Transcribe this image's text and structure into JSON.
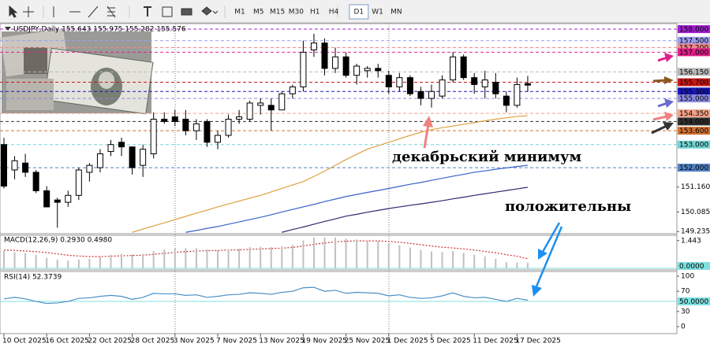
{
  "toolbar": {
    "timeframes": [
      "M1",
      "M5",
      "M15",
      "M30",
      "H1",
      "H4",
      "D1",
      "W1",
      "MN"
    ],
    "active": "D1"
  },
  "chart_data": [
    {
      "type": "candlestick",
      "title": "USDJPY,Daily 155.643 155.975 155.282 155.576",
      "categories": [
        "10 Oct 2025",
        null,
        null,
        null,
        "16 Oct 2025",
        null,
        null,
        null,
        "22 Oct 2025",
        null,
        null,
        null,
        "28 Oct 2025",
        null,
        null,
        null,
        "3 Nov 2025",
        null,
        null,
        null,
        "7 Nov 2025",
        null,
        null,
        null,
        "13 Nov 2025",
        null,
        null,
        null,
        "19 Nov 2025",
        null,
        null,
        null,
        "25 Nov 2025",
        null,
        null,
        null,
        "1 Dec 2025",
        null,
        null,
        null,
        "5 Dec 2025",
        null,
        null,
        null,
        "11 Dec 2025",
        null,
        null,
        null,
        "17 Dec 2025",
        null
      ],
      "open": [
        153.0,
        151.9,
        152.2,
        151.8,
        151.0,
        150.6,
        150.5,
        150.8,
        151.8,
        152.0,
        152.7,
        153.1,
        152.9,
        152.1,
        152.6,
        154.1,
        154.2,
        154.1,
        153.6,
        154.0,
        153.1,
        153.4,
        154.1,
        154.1,
        154.7,
        154.7,
        154.5,
        155.2,
        155.5,
        157.1,
        157.4,
        156.3,
        156.8,
        156.0,
        156.2,
        156.3,
        156.0,
        155.5,
        155.9,
        155.3,
        155.0,
        155.1,
        155.8,
        156.8,
        155.9,
        155.5,
        155.7,
        155.1,
        154.7,
        155.643
      ],
      "high": [
        153.3,
        152.5,
        152.6,
        151.9,
        151.2,
        150.7,
        151.0,
        152.0,
        152.2,
        152.8,
        153.2,
        153.3,
        152.9,
        153.0,
        154.4,
        154.4,
        154.5,
        154.5,
        154.1,
        154.1,
        153.6,
        154.3,
        154.5,
        154.9,
        155.0,
        155.0,
        155.3,
        155.6,
        157.5,
        157.8,
        157.6,
        157.2,
        157.0,
        156.5,
        156.4,
        156.5,
        156.2,
        156.1,
        156.0,
        155.5,
        155.6,
        156.0,
        157.0,
        156.9,
        156.1,
        156.2,
        156.1,
        155.3,
        155.9,
        155.975
      ],
      "low": [
        151.1,
        151.5,
        151.6,
        150.9,
        150.3,
        149.4,
        150.3,
        150.6,
        151.4,
        151.8,
        152.5,
        152.5,
        151.7,
        151.6,
        152.4,
        153.9,
        153.8,
        153.4,
        153.2,
        152.9,
        152.8,
        153.3,
        153.9,
        154.0,
        154.3,
        153.6,
        154.5,
        155.0,
        155.3,
        156.8,
        156.0,
        156.1,
        155.9,
        155.6,
        155.9,
        155.9,
        155.2,
        155.3,
        155.1,
        154.7,
        154.6,
        155.0,
        155.7,
        155.8,
        155.2,
        155.0,
        155.0,
        154.4,
        154.6,
        155.282
      ],
      "close": [
        151.2,
        152.3,
        151.8,
        151.0,
        150.3,
        150.5,
        150.8,
        151.9,
        152.1,
        152.6,
        153.0,
        152.9,
        152.0,
        152.8,
        154.1,
        154.0,
        154.0,
        153.6,
        153.9,
        153.1,
        153.4,
        154.1,
        154.2,
        154.8,
        154.8,
        154.5,
        155.2,
        155.5,
        157.0,
        157.4,
        156.3,
        156.8,
        156.0,
        156.4,
        156.3,
        156.2,
        155.5,
        155.9,
        155.2,
        155.0,
        155.3,
        155.8,
        156.8,
        155.9,
        155.6,
        155.8,
        155.2,
        154.7,
        155.6,
        155.576
      ],
      "up_color": "#ffffff",
      "down_color": "#000000",
      "lines": [
        {
          "color": "#e0a040",
          "values": [
            null,
            null,
            null,
            null,
            null,
            null,
            null,
            null,
            null,
            null,
            null,
            null,
            149.2,
            149.34,
            149.48,
            149.61,
            149.75,
            149.89,
            150.03,
            150.16,
            150.3,
            150.43,
            150.55,
            150.68,
            150.8,
            150.95,
            151.1,
            151.25,
            151.4,
            151.62,
            151.85,
            152.1,
            152.35,
            152.58,
            152.8,
            152.95,
            153.1,
            153.25,
            153.4,
            153.53,
            153.65,
            153.73,
            153.8,
            153.88,
            153.95,
            154.03,
            154.1,
            154.16,
            154.22,
            154.25
          ]
        },
        {
          "color": "#3a62c8",
          "values": [
            null,
            null,
            null,
            null,
            null,
            null,
            null,
            null,
            null,
            null,
            null,
            null,
            null,
            null,
            null,
            null,
            null,
            149.2,
            149.28,
            149.37,
            149.45,
            149.55,
            149.65,
            149.75,
            149.85,
            149.96,
            150.08,
            150.19,
            150.3,
            150.41,
            150.53,
            150.64,
            150.75,
            150.84,
            150.93,
            151.01,
            151.1,
            151.19,
            151.28,
            151.36,
            151.45,
            151.54,
            151.63,
            151.71,
            151.8,
            151.86,
            151.93,
            151.99,
            152.05,
            152.1
          ]
        },
        {
          "color": "#3a2470",
          "values": [
            null,
            null,
            null,
            null,
            null,
            null,
            null,
            null,
            null,
            null,
            null,
            null,
            null,
            null,
            null,
            null,
            null,
            null,
            null,
            null,
            null,
            null,
            null,
            null,
            null,
            null,
            149.2,
            149.32,
            149.43,
            149.55,
            149.67,
            149.78,
            149.9,
            149.98,
            150.07,
            150.15,
            150.23,
            150.3,
            150.37,
            150.43,
            150.5,
            150.57,
            150.65,
            150.72,
            150.8,
            150.87,
            150.94,
            151.01,
            151.08,
            151.15
          ]
        }
      ],
      "levels": [
        {
          "value": 158,
          "label": "158.000",
          "color": "#a020d0"
        },
        {
          "value": 157.5,
          "label": "157.500",
          "color": "#9c9cf0"
        },
        {
          "value": 157.2,
          "label": "157.200",
          "color": "#f08a8a"
        },
        {
          "value": 157,
          "label": "157.000",
          "color": "#e0208a"
        },
        {
          "value": 156.15,
          "label": "156.150",
          "color": "#b8b8b8"
        },
        {
          "value": 155.7,
          "label": "155.700",
          "color": "#c81818"
        },
        {
          "value": 155.3,
          "label": "155.300",
          "color": "#1818b8"
        },
        {
          "value": 155,
          "label": "155.000",
          "color": "#8a8ae0"
        },
        {
          "value": 154.35,
          "label": "154.350",
          "color": "#f4a088"
        },
        {
          "value": 154,
          "label": "154.000",
          "color": "#303030"
        },
        {
          "value": 153.6,
          "label": "153.600",
          "color": "#d07030"
        },
        {
          "value": 153,
          "label": "153.000",
          "color": "#70d4d4"
        },
        {
          "value": 152,
          "label": "152.000",
          "color": "#5080c0"
        }
      ],
      "ylim": [
        149.14,
        158.24
      ],
      "yticks": [
        {
          "value": 151.16,
          "label": "151.160"
        },
        {
          "value": 150.085,
          "label": "150.085"
        },
        {
          "value": 149.235,
          "label": "149.235"
        }
      ],
      "annotations": [
        {
          "text": "декабрьский минимум",
          "color": "#f08080"
        },
        {
          "text": "положительны",
          "color": "#1e8ff0"
        }
      ]
    },
    {
      "type": "macd",
      "title": "MACD(12,26,9) 0.2930 0.4980",
      "histogram": [
        0.9,
        0.85,
        0.8,
        0.7,
        0.55,
        0.45,
        0.4,
        0.45,
        0.5,
        0.6,
        0.7,
        0.75,
        0.72,
        0.75,
        0.9,
        0.98,
        1.05,
        1.05,
        1.05,
        0.98,
        0.95,
        1.0,
        1.02,
        1.1,
        1.12,
        1.1,
        1.15,
        1.22,
        1.45,
        1.6,
        1.6,
        1.6,
        1.55,
        1.5,
        1.45,
        1.4,
        1.28,
        1.2,
        1.08,
        0.95,
        0.88,
        0.85,
        0.9,
        0.8,
        0.7,
        0.62,
        0.5,
        0.33,
        0.3,
        0.293
      ],
      "signal": [
        0.95,
        0.93,
        0.9,
        0.87,
        0.82,
        0.75,
        0.68,
        0.64,
        0.61,
        0.61,
        0.63,
        0.65,
        0.67,
        0.68,
        0.73,
        0.78,
        0.83,
        0.87,
        0.9,
        0.92,
        0.93,
        0.95,
        0.96,
        0.99,
        1.01,
        1.03,
        1.05,
        1.09,
        1.16,
        1.25,
        1.32,
        1.38,
        1.41,
        1.43,
        1.43,
        1.43,
        1.4,
        1.36,
        1.3,
        1.23,
        1.16,
        1.1,
        1.06,
        1.01,
        0.95,
        0.88,
        0.81,
        0.71,
        0.63,
        0.498
      ],
      "histogram_color": "#c0c0c0",
      "signal_color": "#cc3030",
      "ylim": [
        -0.08,
        1.72
      ],
      "yticks": [
        1.443
      ],
      "levels": [
        {
          "value": 0,
          "label": "0.0000",
          "color": "#80e0e0"
        }
      ]
    },
    {
      "type": "line",
      "title": "RSI(14) 52.3739",
      "values": [
        55,
        58,
        55,
        50,
        46,
        47,
        50,
        56,
        57,
        60,
        62,
        60,
        54,
        58,
        66,
        65,
        65,
        62,
        63,
        58,
        60,
        63,
        64,
        67,
        66,
        64,
        68,
        70,
        77,
        78,
        70,
        72,
        66,
        68,
        67,
        66,
        61,
        63,
        58,
        56,
        57,
        61,
        67,
        60,
        57,
        58,
        54,
        50,
        56,
        52.3739
      ],
      "color": "#4a90c8",
      "ylim": [
        -14,
        109.4
      ],
      "yticks": [
        100,
        70,
        30,
        0
      ],
      "levels": [
        {
          "value": 50,
          "label": "50.0000",
          "color": "#80e0e0"
        }
      ]
    }
  ]
}
